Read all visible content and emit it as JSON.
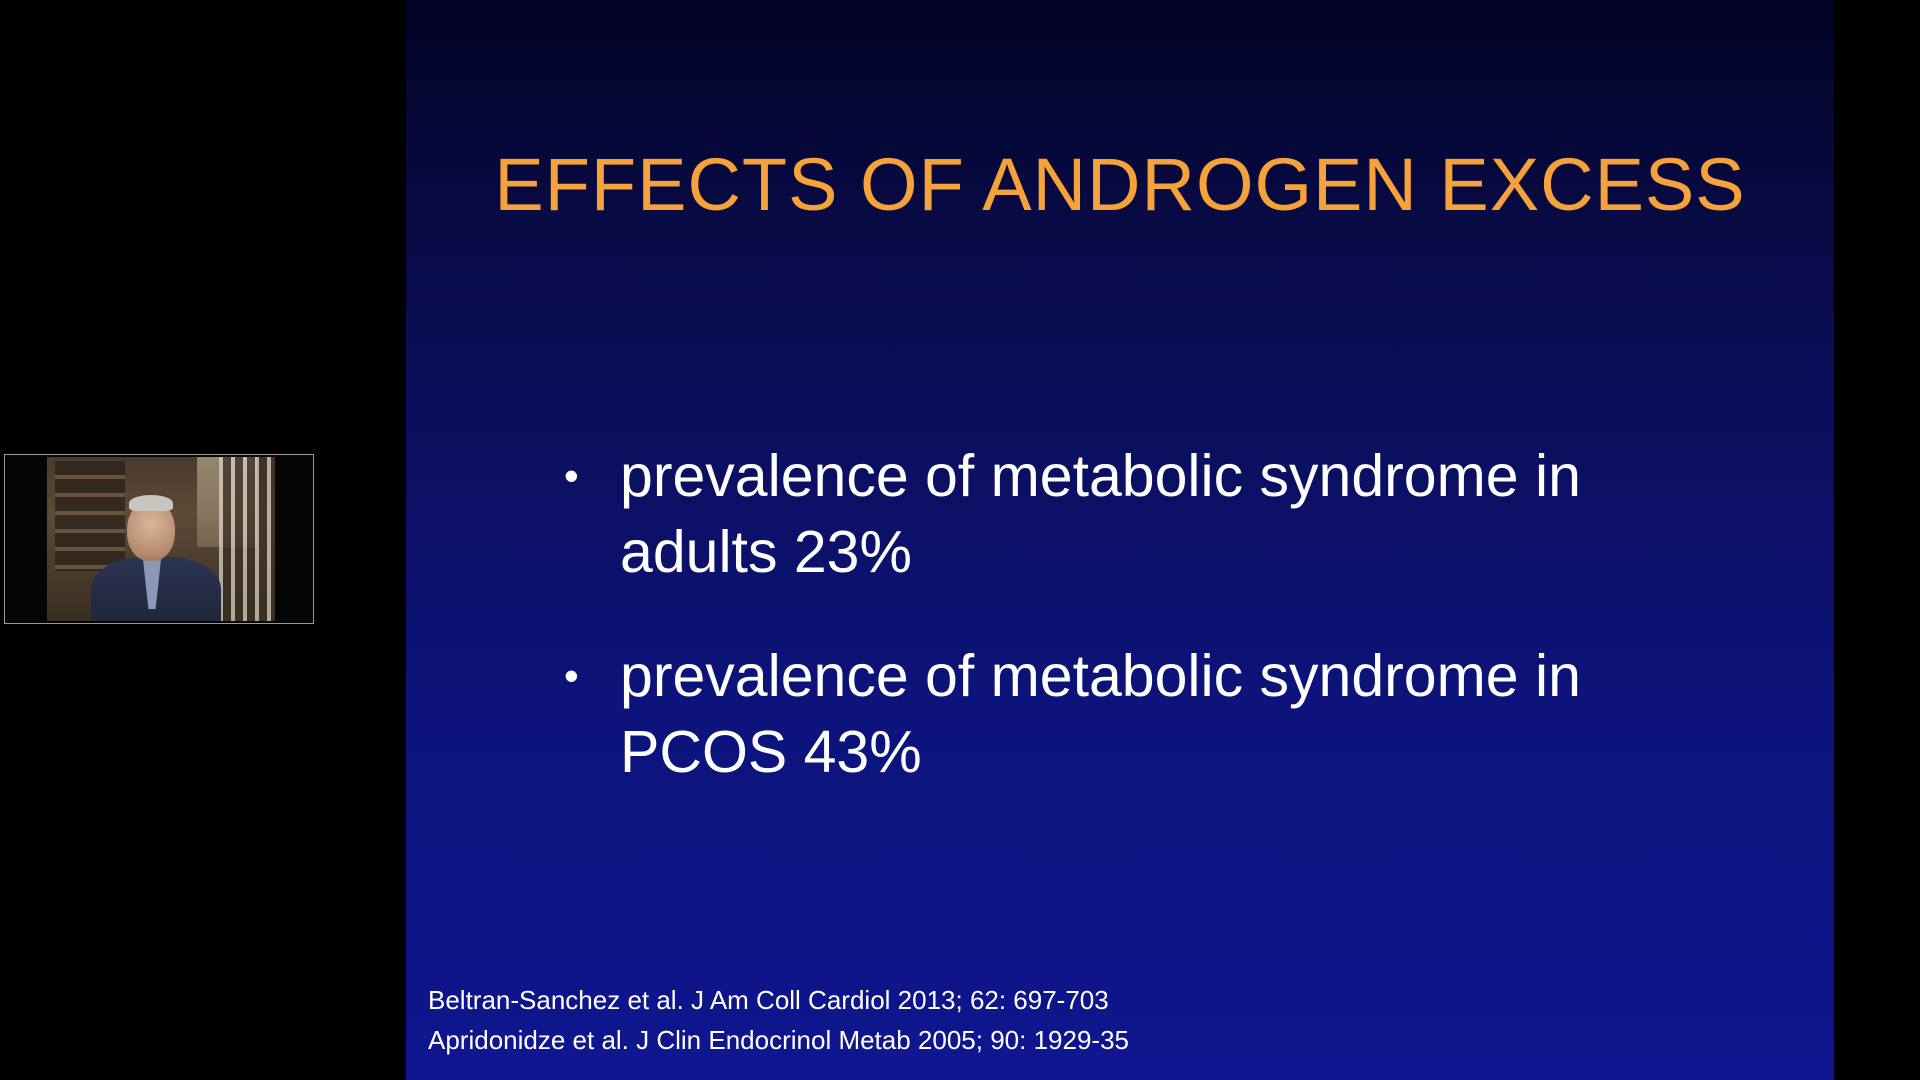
{
  "slide": {
    "title": "EFFECTS OF ANDROGEN EXCESS",
    "bullets": [
      {
        "line1": "prevalence of metabolic syndrome in",
        "line2": "adults 23%"
      },
      {
        "line1": "prevalence of metabolic syndrome in",
        "line2": "PCOS 43%"
      }
    ],
    "references": [
      "Beltran-Sanchez et al. J Am Coll Cardiol 2013; 62: 697-703",
      "Apridonidze et al. J Clin Endocrinol Metab 2005; 90: 1929-35"
    ]
  },
  "webcam": {
    "icon": "presenter-video-feed"
  },
  "colors": {
    "title": "#f5a23a",
    "slide_top": "#030325",
    "slide_bottom": "#0f1690",
    "text": "#ffffff",
    "background": "#000000"
  }
}
